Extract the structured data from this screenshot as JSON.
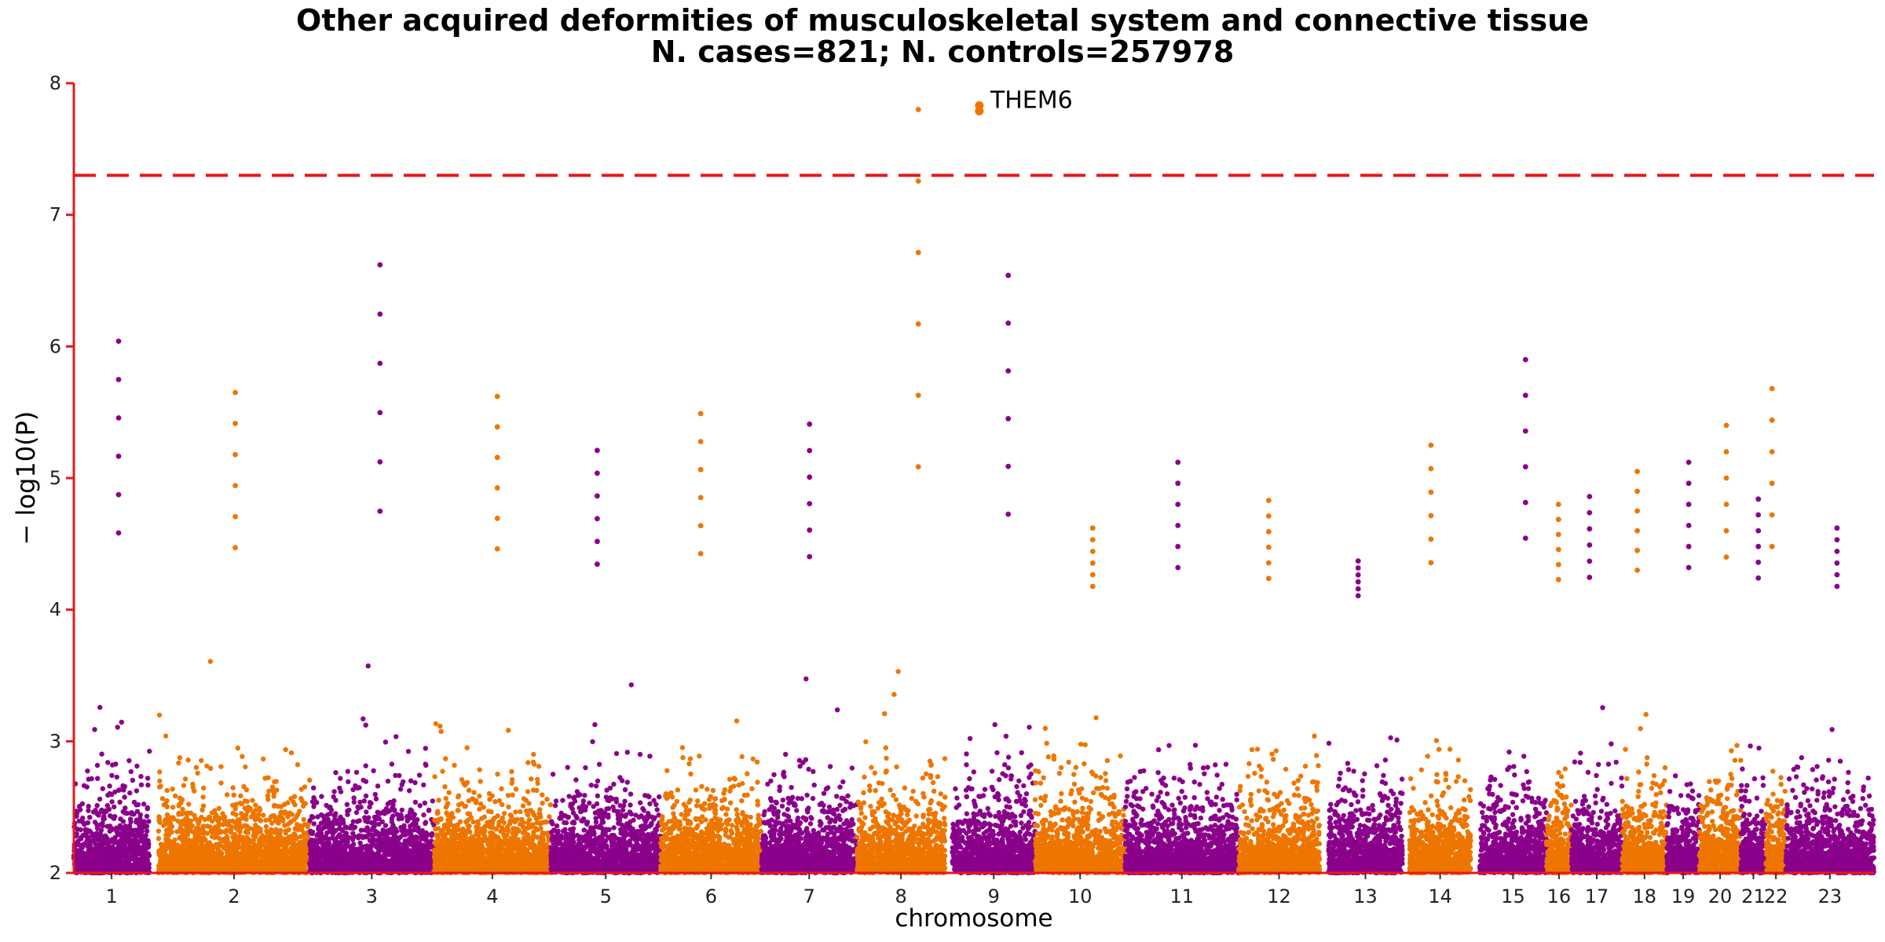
{
  "chart_data": {
    "type": "scatter",
    "title": "Other acquired deformities of musculoskeletal system and connective tissue",
    "subtitle": "N. cases=821; N. controls=257978",
    "xlabel": "chromosome",
    "ylabel": "− log10(P)",
    "ylim": [
      2,
      8
    ],
    "yticks": [
      2,
      3,
      4,
      5,
      6,
      7,
      8
    ],
    "threshold": 7.3,
    "grid": false,
    "colors": {
      "odd": "#8B008B",
      "even": "#EE7600",
      "axis": "#e41a1c",
      "threshold": "#e41a1c"
    },
    "chromosomes": [
      {
        "label": "1",
        "x0": 0.0,
        "x1": 4.2,
        "peak": 6.04
      },
      {
        "label": "2",
        "x0": 4.7,
        "x1": 13.1,
        "peak": 5.65
      },
      {
        "label": "3",
        "x0": 13.1,
        "x1": 20.0,
        "peak": 6.62
      },
      {
        "label": "4",
        "x0": 20.0,
        "x1": 26.5,
        "peak": 5.62
      },
      {
        "label": "5",
        "x0": 26.5,
        "x1": 32.6,
        "peak": 5.21
      },
      {
        "label": "6",
        "x0": 32.6,
        "x1": 38.2,
        "peak": 5.49
      },
      {
        "label": "7",
        "x0": 38.2,
        "x1": 43.5,
        "peak": 5.41
      },
      {
        "label": "8",
        "x0": 43.5,
        "x1": 48.4,
        "peak": 7.8
      },
      {
        "label": "9",
        "x0": 48.8,
        "x1": 53.4,
        "peak": 6.54
      },
      {
        "label": "10",
        "x0": 53.4,
        "x1": 58.4,
        "peak": 4.62
      },
      {
        "label": "11",
        "x0": 58.4,
        "x1": 64.7,
        "peak": 5.12
      },
      {
        "label": "12",
        "x0": 64.7,
        "x1": 69.2,
        "peak": 4.83
      },
      {
        "label": "13",
        "x0": 69.7,
        "x1": 73.8,
        "peak": 4.37
      },
      {
        "label": "14",
        "x0": 74.2,
        "x1": 77.6,
        "peak": 5.25
      },
      {
        "label": "15",
        "x0": 78.1,
        "x1": 81.8,
        "peak": 5.9
      },
      {
        "label": "16",
        "x0": 81.8,
        "x1": 83.2,
        "peak": 4.8
      },
      {
        "label": "17",
        "x0": 83.2,
        "x1": 86.0,
        "peak": 4.86
      },
      {
        "label": "18",
        "x0": 86.0,
        "x1": 88.5,
        "peak": 5.05
      },
      {
        "label": "19",
        "x0": 88.5,
        "x1": 90.3,
        "peak": 5.12
      },
      {
        "label": "20",
        "x0": 90.3,
        "x1": 92.6,
        "peak": 5.4
      },
      {
        "label": "21",
        "x0": 92.6,
        "x1": 94.0,
        "peak": 4.84
      },
      {
        "label": "22",
        "x0": 94.0,
        "x1": 95.1,
        "peak": 5.68
      },
      {
        "label": "23",
        "x0": 95.1,
        "x1": 100.0,
        "peak": 4.62
      }
    ],
    "annotations": [
      {
        "text": "THEM6",
        "chromosome": "8",
        "x": 50.3,
        "y": 7.8
      }
    ]
  }
}
